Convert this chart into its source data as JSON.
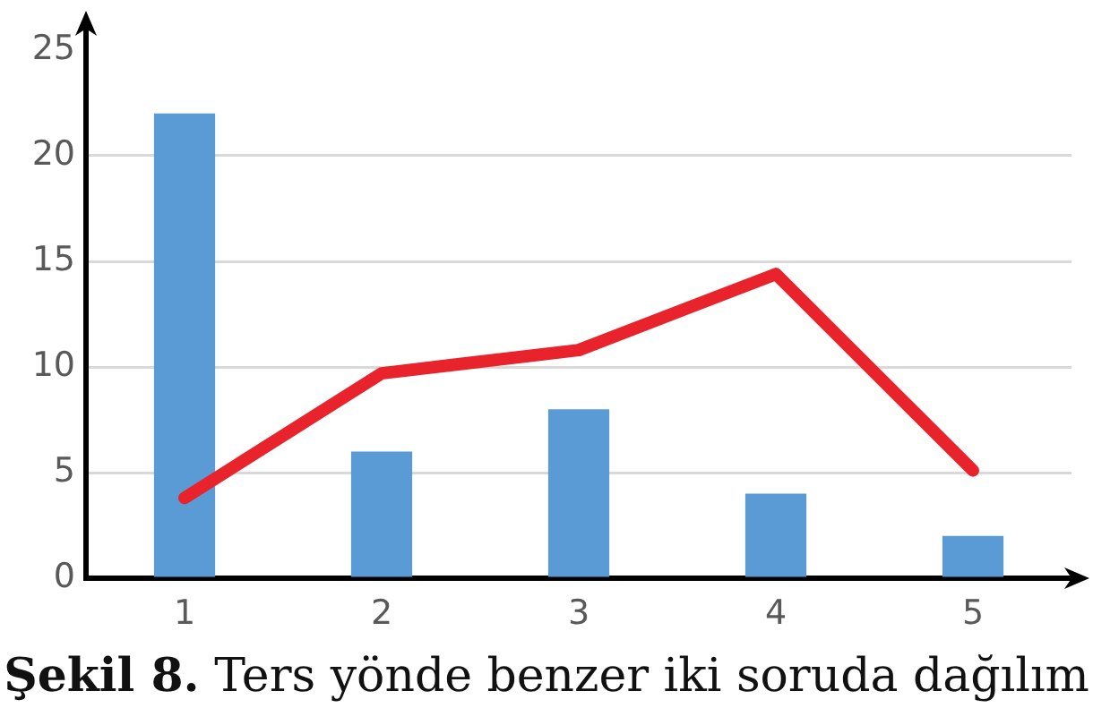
{
  "chart_data": {
    "type": "bar",
    "title": "Şekil 8. Ters yönde benzer iki soruda dağılım",
    "categories": [
      "1",
      "2",
      "3",
      "4",
      "5"
    ],
    "series": [
      {
        "color": "#5b9bd5",
        "values": [
          22,
          6,
          8,
          4,
          2
        ]
      },
      {
        "type": "line",
        "color": "#e8232b",
        "values": [
          3.8,
          9.7,
          10.8,
          14.4,
          5.1
        ]
      }
    ],
    "ylim": [
      0,
      25
    ],
    "yticks": [
      0,
      5,
      10,
      15,
      20,
      25
    ],
    "grid": "y",
    "marker": "none",
    "line_style": "solid"
  }
}
